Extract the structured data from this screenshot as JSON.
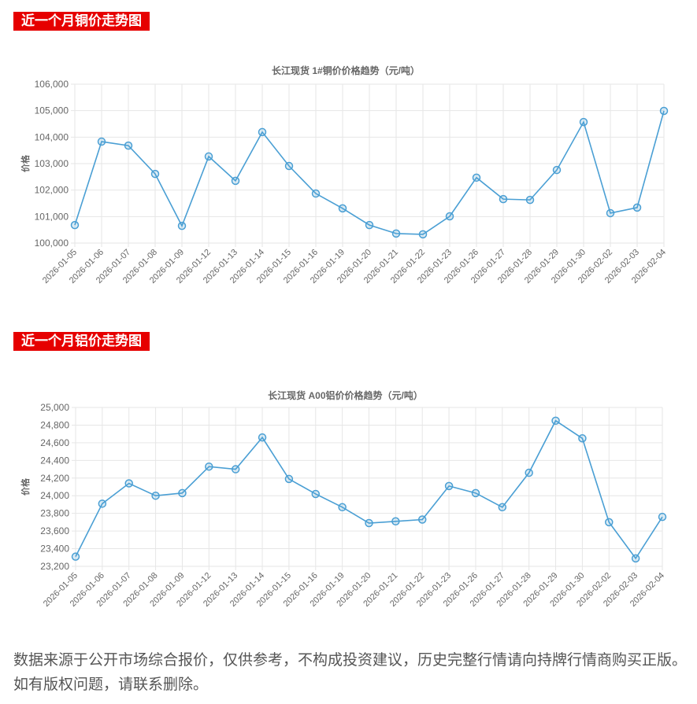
{
  "sections": [
    {
      "header": "近一个月铜价走势图"
    },
    {
      "header": "近一个月铝价走势图"
    }
  ],
  "footer": "数据来源于公开市场综合报价，仅供参考，不构成投资建议，历史完整行情请向持牌行情商购买正版。如有版权问题，请联系删除。",
  "chart_data": [
    {
      "type": "line",
      "title": "长江现货 1#铜价价格趋势（元/吨）",
      "ylabel": "价格",
      "ylim": [
        100000,
        106000
      ],
      "yticks": [
        100000,
        101000,
        102000,
        103000,
        104000,
        105000,
        106000
      ],
      "grid": true,
      "color": "#4a9fd4",
      "categories": [
        "2026-01-05",
        "2026-01-06",
        "2026-01-07",
        "2026-01-08",
        "2026-01-09",
        "2026-01-12",
        "2026-01-13",
        "2026-01-14",
        "2026-01-15",
        "2026-01-16",
        "2026-01-19",
        "2026-01-20",
        "2026-01-21",
        "2026-01-22",
        "2026-01-23",
        "2026-01-26",
        "2026-01-27",
        "2026-01-28",
        "2026-01-29",
        "2026-01-30",
        "2026-02-02",
        "2026-02-03",
        "2026-02-04"
      ],
      "values": [
        100680,
        103830,
        103680,
        102610,
        100650,
        103270,
        102350,
        104190,
        102910,
        101870,
        101310,
        100680,
        100360,
        100330,
        101010,
        102470,
        101660,
        101630,
        102760,
        104570,
        101130,
        101340,
        104990
      ]
    },
    {
      "type": "line",
      "title": "长江现货 A00铝价价格趋势（元/吨）",
      "ylabel": "价格",
      "ylim": [
        23200,
        25000
      ],
      "yticks": [
        23200,
        23400,
        23600,
        23800,
        24000,
        24200,
        24400,
        24600,
        24800,
        25000
      ],
      "grid": true,
      "color": "#4a9fd4",
      "categories": [
        "2026-01-05",
        "2026-01-06",
        "2026-01-07",
        "2026-01-08",
        "2026-01-09",
        "2026-01-12",
        "2026-01-13",
        "2026-01-14",
        "2026-01-15",
        "2026-01-16",
        "2026-01-19",
        "2026-01-20",
        "2026-01-21",
        "2026-01-22",
        "2026-01-23",
        "2026-01-26",
        "2026-01-27",
        "2026-01-28",
        "2026-01-29",
        "2026-01-30",
        "2026-02-02",
        "2026-02-03",
        "2026-02-04"
      ],
      "values": [
        23310,
        23910,
        24140,
        24000,
        24030,
        24330,
        24300,
        24660,
        24190,
        24020,
        23870,
        23690,
        23710,
        23730,
        24110,
        24030,
        23870,
        24260,
        24850,
        24650,
        23700,
        23290,
        23760
      ]
    }
  ]
}
